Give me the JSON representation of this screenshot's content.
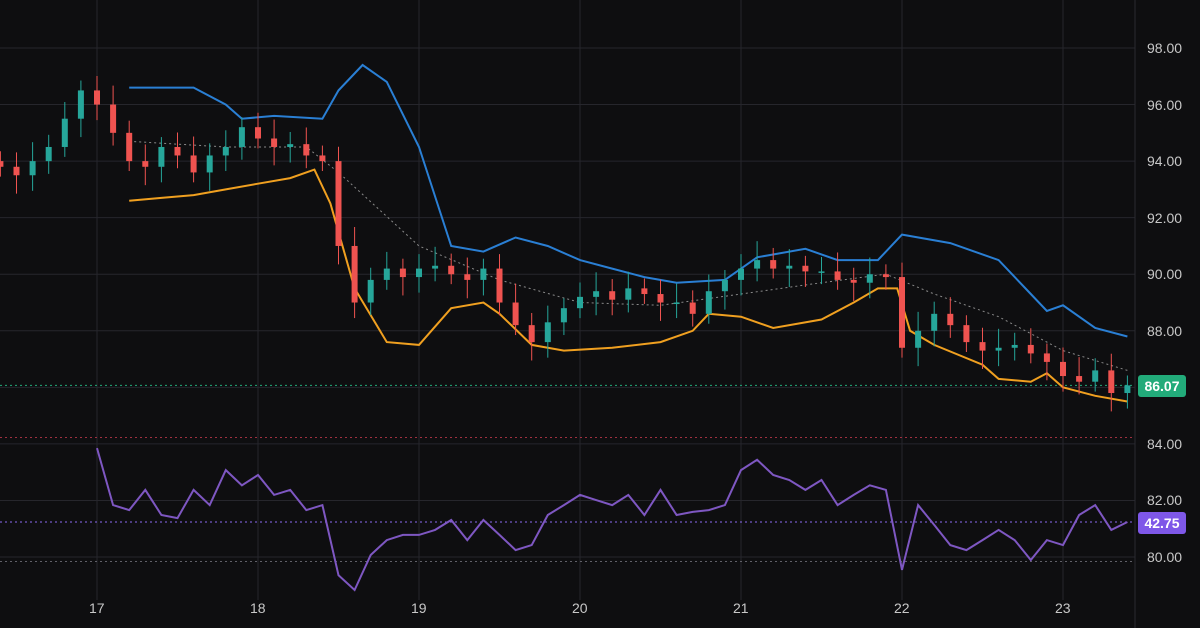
{
  "chart_data": {
    "type": "candlestick",
    "title": "",
    "y_ticks": [
      "98.00",
      "96.00",
      "94.00",
      "92.00",
      "90.00",
      "88.00",
      "86.00",
      "84.00",
      "82.00",
      "80.00"
    ],
    "y_tick_values": [
      98,
      96,
      94,
      92,
      90,
      88,
      86,
      84,
      82,
      80
    ],
    "x_ticks": [
      "17",
      "18",
      "19",
      "20",
      "21",
      "22",
      "23"
    ],
    "x_tick_values": [
      17,
      18,
      19,
      20,
      21,
      22,
      23
    ],
    "xlim": [
      16.4,
      23.45
    ],
    "ylim": [
      78.5,
      99.7
    ],
    "candle_step_days": 0.1,
    "candles_start": 16.4,
    "closes": [
      93.8,
      93.5,
      94.0,
      94.5,
      95.5,
      96.5,
      96.0,
      95.0,
      94.0,
      93.8,
      94.5,
      94.2,
      93.6,
      94.2,
      94.5,
      95.2,
      94.8,
      94.5,
      94.6,
      94.2,
      94.0,
      91.0,
      89.0,
      89.8,
      90.2,
      89.9,
      90.2,
      90.3,
      90.0,
      89.8,
      90.2,
      89.0,
      88.2,
      87.6,
      88.3,
      88.8,
      89.2,
      89.4,
      89.1,
      89.5,
      89.3,
      89.0,
      89.0,
      88.6,
      89.4,
      89.8,
      90.2,
      90.5,
      90.2,
      90.3,
      90.1,
      90.1,
      89.8,
      89.7,
      90.0,
      89.9,
      87.4,
      88.0,
      88.6,
      88.2,
      87.6,
      87.3,
      87.4,
      87.5,
      87.2,
      86.9,
      86.4,
      86.2,
      86.6,
      85.8,
      86.07
    ],
    "upper_band": [
      [
        17.2,
        96.6
      ],
      [
        17.6,
        96.6
      ],
      [
        17.8,
        96.0
      ],
      [
        17.9,
        95.5
      ],
      [
        18.1,
        95.6
      ],
      [
        18.4,
        95.5
      ],
      [
        18.5,
        96.5
      ],
      [
        18.65,
        97.4
      ],
      [
        18.8,
        96.8
      ],
      [
        19.0,
        94.5
      ],
      [
        19.2,
        91.0
      ],
      [
        19.4,
        90.8
      ],
      [
        19.6,
        91.3
      ],
      [
        19.8,
        91.0
      ],
      [
        20.0,
        90.5
      ],
      [
        20.2,
        90.2
      ],
      [
        20.4,
        89.9
      ],
      [
        20.6,
        89.7
      ],
      [
        20.9,
        89.8
      ],
      [
        21.1,
        90.6
      ],
      [
        21.4,
        90.9
      ],
      [
        21.6,
        90.5
      ],
      [
        21.85,
        90.5
      ],
      [
        22.0,
        91.4
      ],
      [
        22.3,
        91.1
      ],
      [
        22.6,
        90.5
      ],
      [
        22.8,
        89.3
      ],
      [
        22.9,
        88.7
      ],
      [
        23.0,
        88.9
      ],
      [
        23.2,
        88.1
      ],
      [
        23.4,
        87.8
      ]
    ],
    "lower_band": [
      [
        17.2,
        92.6
      ],
      [
        17.4,
        92.7
      ],
      [
        17.6,
        92.8
      ],
      [
        17.8,
        93.0
      ],
      [
        18.0,
        93.2
      ],
      [
        18.2,
        93.4
      ],
      [
        18.35,
        93.7
      ],
      [
        18.45,
        92.5
      ],
      [
        18.6,
        89.5
      ],
      [
        18.8,
        87.6
      ],
      [
        19.0,
        87.5
      ],
      [
        19.2,
        88.8
      ],
      [
        19.4,
        89.0
      ],
      [
        19.5,
        88.6
      ],
      [
        19.7,
        87.5
      ],
      [
        19.9,
        87.3
      ],
      [
        20.2,
        87.4
      ],
      [
        20.5,
        87.6
      ],
      [
        20.7,
        88.0
      ],
      [
        20.8,
        88.6
      ],
      [
        21.0,
        88.5
      ],
      [
        21.2,
        88.1
      ],
      [
        21.5,
        88.4
      ],
      [
        21.7,
        89.0
      ],
      [
        21.85,
        89.5
      ],
      [
        21.97,
        89.5
      ],
      [
        22.05,
        88.0
      ],
      [
        22.2,
        87.5
      ],
      [
        22.5,
        86.8
      ],
      [
        22.6,
        86.3
      ],
      [
        22.8,
        86.2
      ],
      [
        22.9,
        86.5
      ],
      [
        23.0,
        86.0
      ],
      [
        23.2,
        85.7
      ],
      [
        23.4,
        85.5
      ]
    ],
    "middle_band": [
      [
        17.2,
        94.7
      ],
      [
        17.8,
        94.5
      ],
      [
        18.3,
        94.5
      ],
      [
        18.5,
        93.6
      ],
      [
        19.0,
        91.0
      ],
      [
        19.5,
        89.8
      ],
      [
        20.0,
        89.0
      ],
      [
        20.5,
        88.9
      ],
      [
        21.0,
        89.3
      ],
      [
        21.5,
        89.7
      ],
      [
        21.9,
        90.0
      ],
      [
        22.2,
        89.3
      ],
      [
        22.6,
        88.5
      ],
      [
        23.0,
        87.3
      ],
      [
        23.4,
        86.6
      ]
    ],
    "rsi_start": 17.0,
    "rsi": [
      66.6,
      48.2,
      46.6,
      53.1,
      45.0,
      44.0,
      53.1,
      48.2,
      59.5,
      54.6,
      57.9,
      51.5,
      53.1,
      46.6,
      48.2,
      25.6,
      20.8,
      32.1,
      36.9,
      38.6,
      38.6,
      40.2,
      43.4,
      36.9,
      43.4,
      38.6,
      33.7,
      35.3,
      45.0,
      48.2,
      51.5,
      49.8,
      48.2,
      51.5,
      45.0,
      53.1,
      45.0,
      46.0,
      46.6,
      48.2,
      59.5,
      62.8,
      57.9,
      56.3,
      53.1,
      56.3,
      48.2,
      51.5,
      54.6,
      53.1,
      27.3,
      48.2,
      41.8,
      35.3,
      33.7,
      36.9,
      40.2,
      36.9,
      30.5,
      36.9,
      35.3,
      45.0,
      48.2,
      40.2,
      42.75
    ],
    "rsi_levels": [
      70,
      30
    ],
    "last_price": "86.07",
    "last_rsi": "42.75",
    "colors": {
      "up": "#26a69a",
      "down": "#ef5350",
      "upper": "#2a7fd4",
      "lower": "#f0a020",
      "middle": "#8a8a8a",
      "rsi": "#7e57c2",
      "bg": "#0e0e10",
      "grid": "#26262c"
    }
  }
}
